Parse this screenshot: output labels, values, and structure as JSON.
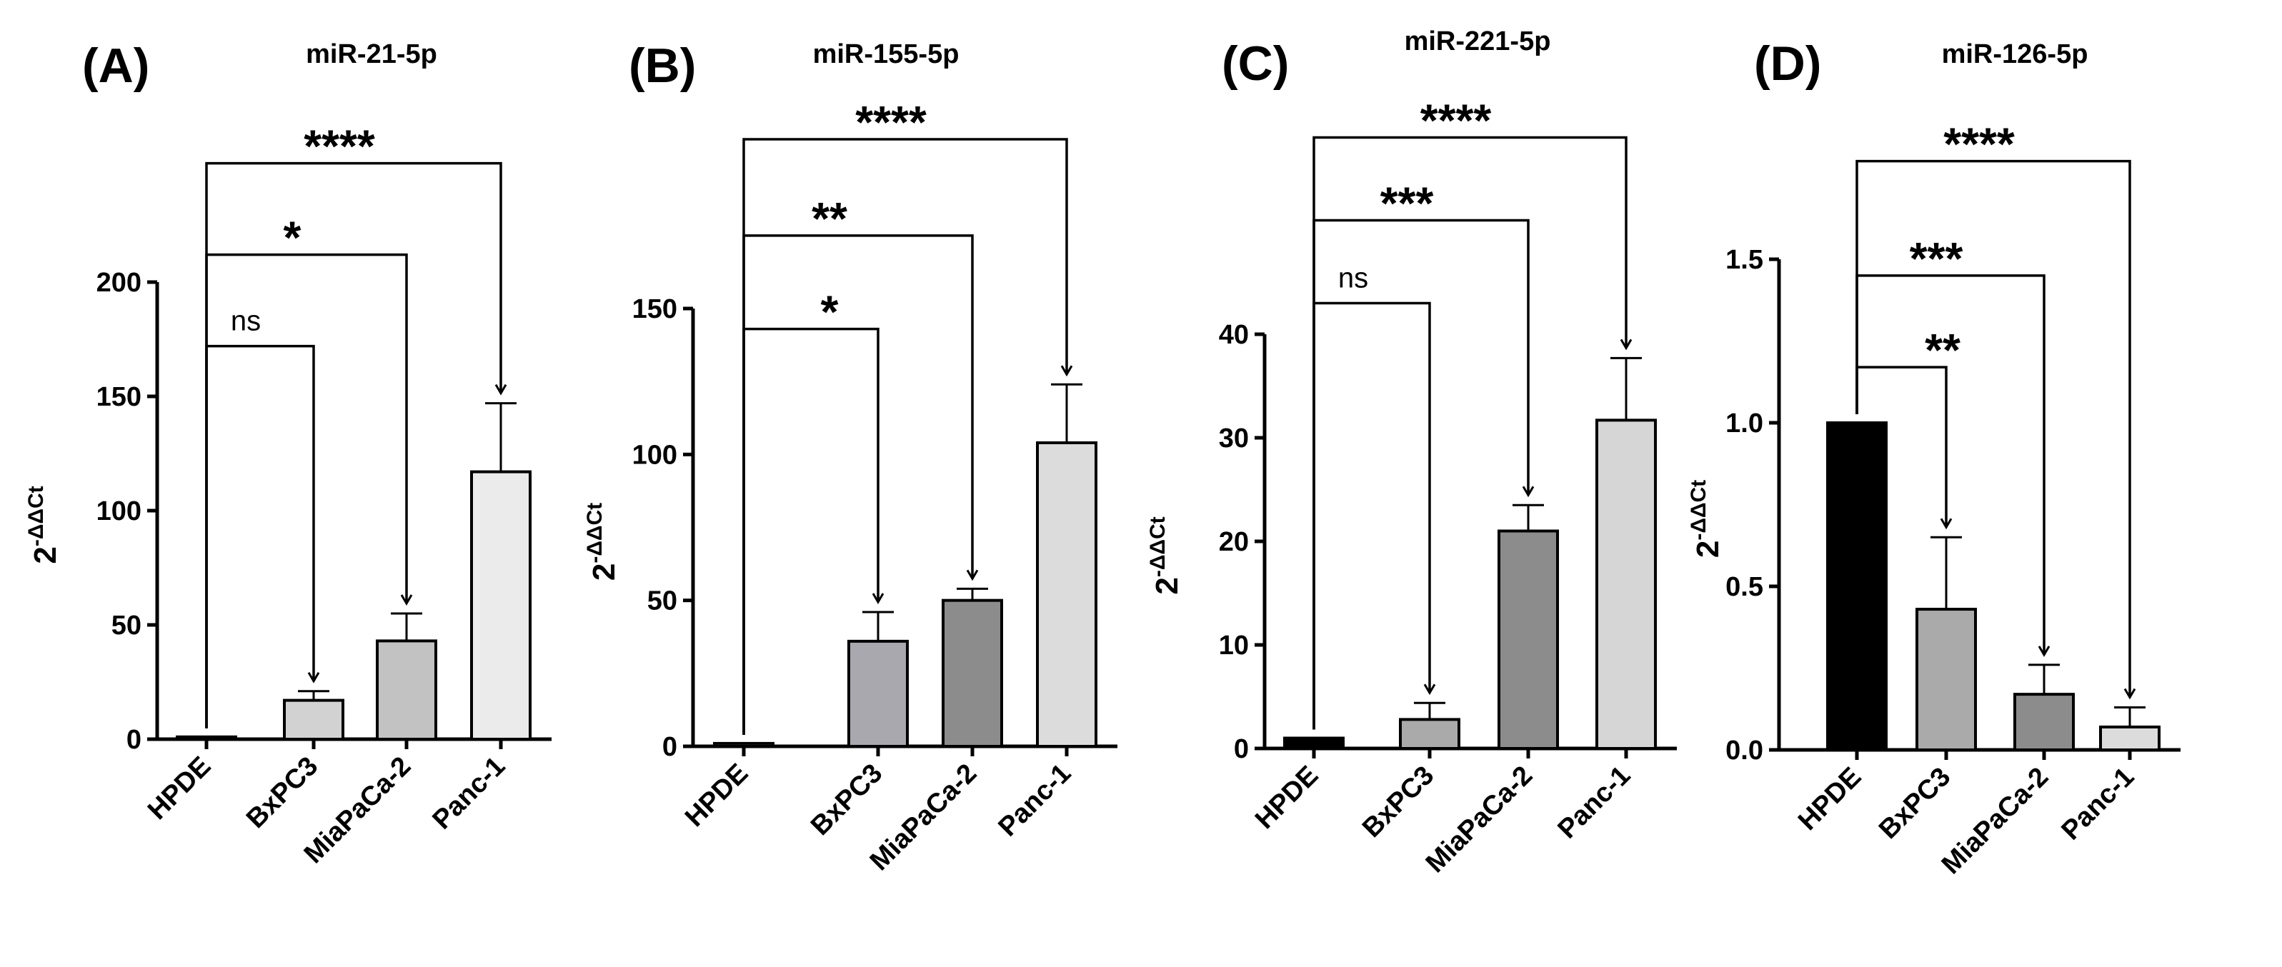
{
  "chart_data": [
    {
      "type": "bar",
      "panel": "(A)",
      "title": "miR-21-5p",
      "ylabel": "2",
      "ylabel_sup": "-ΔΔCt",
      "categories": [
        "HPDE",
        "BxPC3",
        "MiaPaCa-2",
        "Panc-1"
      ],
      "values": [
        1,
        17,
        43,
        117
      ],
      "errors": [
        0,
        4,
        12,
        30
      ],
      "bar_colors": [
        "#e0e0e0",
        "#d2d2d2",
        "#c2c2c2",
        "#ebebeb"
      ],
      "ylim": [
        0,
        200
      ],
      "yticks": [
        0,
        50,
        100,
        150,
        200
      ],
      "tick_labels": [
        "0",
        "50",
        "100",
        "150",
        "200"
      ],
      "significance": [
        {
          "from": 0,
          "to": 1,
          "label": "ns",
          "y": 172
        },
        {
          "from": 0,
          "to": 2,
          "label": "*",
          "y": 212
        },
        {
          "from": 0,
          "to": 3,
          "label": "****",
          "y": 252
        }
      ]
    },
    {
      "type": "bar",
      "panel": "(B)",
      "title": "miR-155-5p",
      "ylabel": "2",
      "ylabel_sup": "-ΔΔCt",
      "categories": [
        "HPDE",
        "BxPC3",
        "MiaPaCa-2",
        "Panc-1"
      ],
      "values": [
        1,
        36,
        50,
        104
      ],
      "errors": [
        0,
        10,
        4,
        20
      ],
      "bar_colors": [
        "#e0e0e0",
        "#a8a8ae",
        "#8c8c8c",
        "#dcdcdc"
      ],
      "ylim": [
        0,
        150
      ],
      "yticks": [
        0,
        50,
        100,
        150
      ],
      "tick_labels": [
        "0",
        "50",
        "100",
        "150"
      ],
      "significance": [
        {
          "from": 0,
          "to": 1,
          "label": "*",
          "y": 143
        },
        {
          "from": 0,
          "to": 2,
          "label": "**",
          "y": 175
        },
        {
          "from": 0,
          "to": 3,
          "label": "****",
          "y": 208
        }
      ]
    },
    {
      "type": "bar",
      "panel": "(C)",
      "title": "miR-221-5p",
      "ylabel": "2",
      "ylabel_sup": "-ΔΔCt",
      "categories": [
        "HPDE",
        "BxPC3",
        "MiaPaCa-2",
        "Panc-1"
      ],
      "values": [
        1,
        2.8,
        21,
        31.7
      ],
      "errors": [
        0,
        1.6,
        2.5,
        6
      ],
      "bar_colors": [
        "#000000",
        "#aaaaaa",
        "#8c8c8c",
        "#d6d6d6"
      ],
      "ylim": [
        0,
        40
      ],
      "yticks": [
        0,
        10,
        20,
        30,
        40
      ],
      "tick_labels": [
        "0",
        "10",
        "20",
        "30",
        "40"
      ],
      "significance": [
        {
          "from": 0,
          "to": 1,
          "label": "ns",
          "y": 43
        },
        {
          "from": 0,
          "to": 2,
          "label": "***",
          "y": 51
        },
        {
          "from": 0,
          "to": 3,
          "label": "****",
          "y": 59
        }
      ]
    },
    {
      "type": "bar",
      "panel": "(D)",
      "title": "miR-126-5p",
      "ylabel": "2",
      "ylabel_sup": "-ΔΔCt",
      "categories": [
        "HPDE",
        "BxPC3",
        "MiaPaCa-2",
        "Panc-1"
      ],
      "values": [
        1.0,
        0.43,
        0.17,
        0.07
      ],
      "errors": [
        0,
        0.22,
        0.09,
        0.06
      ],
      "bar_colors": [
        "#000000",
        "#aaaaaa",
        "#8c8c8c",
        "#dcdcdc"
      ],
      "ylim": [
        0,
        1.5
      ],
      "yticks": [
        0.0,
        0.5,
        1.0,
        1.5
      ],
      "tick_labels": [
        "0.0",
        "0.5",
        "1.0",
        "1.5"
      ],
      "significance": [
        {
          "from": 0,
          "to": 1,
          "label": "**",
          "y": 1.17
        },
        {
          "from": 0,
          "to": 2,
          "label": "***",
          "y": 1.45
        },
        {
          "from": 0,
          "to": 3,
          "label": "****",
          "y": 1.8
        }
      ]
    }
  ]
}
